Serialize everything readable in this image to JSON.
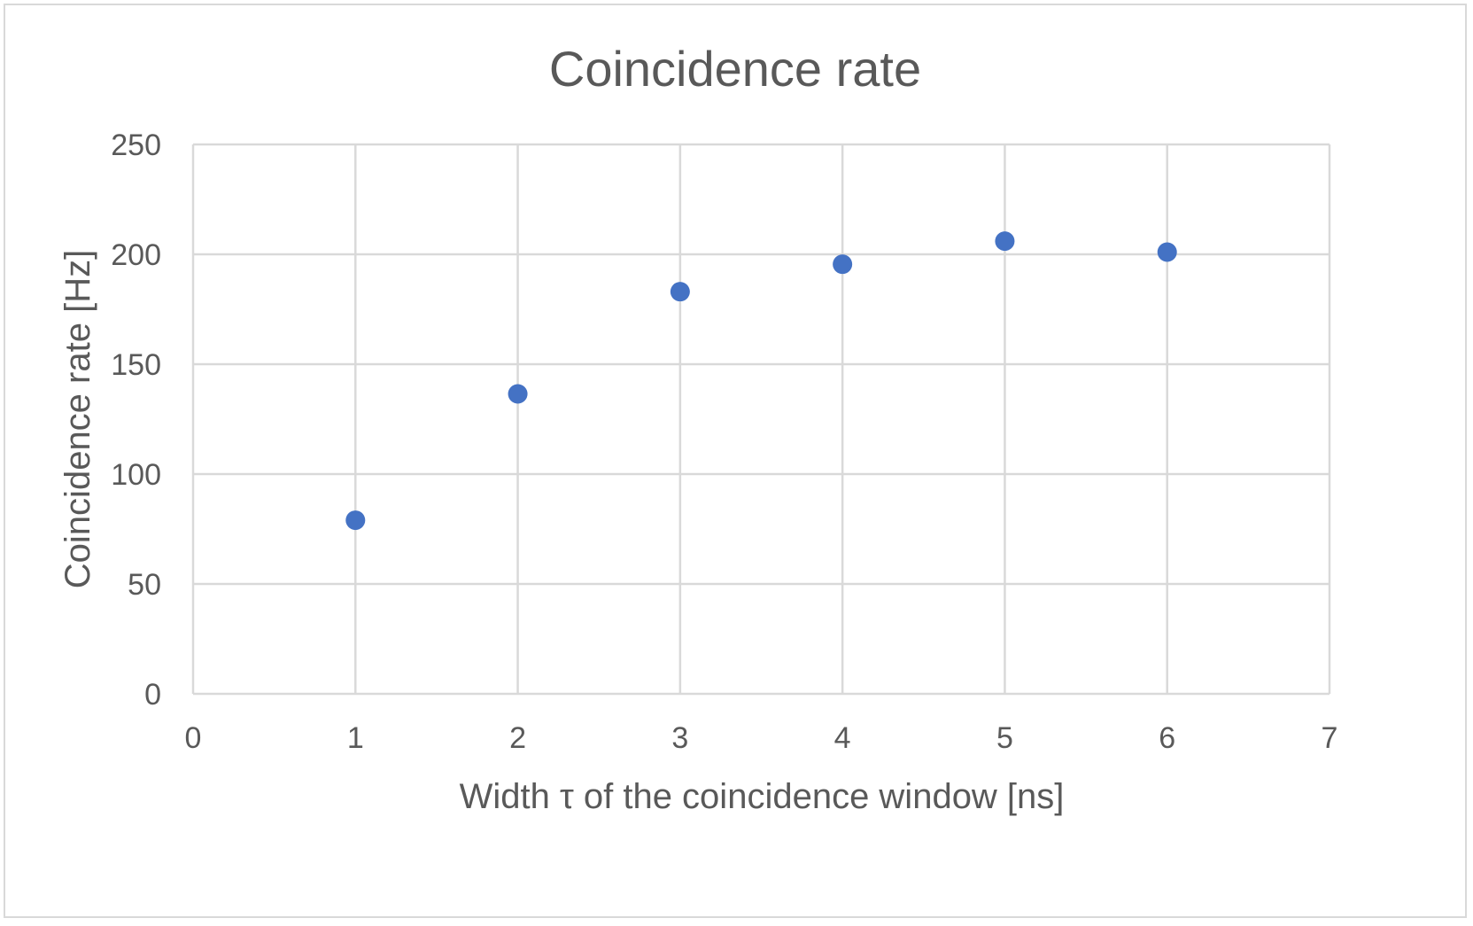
{
  "chart_data": {
    "type": "scatter",
    "title": "Coincidence rate",
    "xlabel": "Width τ of the coincidence window [ns]",
    "ylabel": "Coincidence rate [Hz]",
    "xlim": [
      0,
      7
    ],
    "ylim": [
      0,
      250
    ],
    "xticks": [
      0,
      1,
      2,
      3,
      4,
      5,
      6,
      7
    ],
    "yticks": [
      0,
      50,
      100,
      150,
      200,
      250
    ],
    "grid": true,
    "legend": "none",
    "series": [
      {
        "color": "#4472c4",
        "x": [
          1,
          2,
          3,
          4,
          5,
          6
        ],
        "y": [
          79,
          136.5,
          183,
          195.5,
          206,
          201
        ]
      }
    ]
  }
}
